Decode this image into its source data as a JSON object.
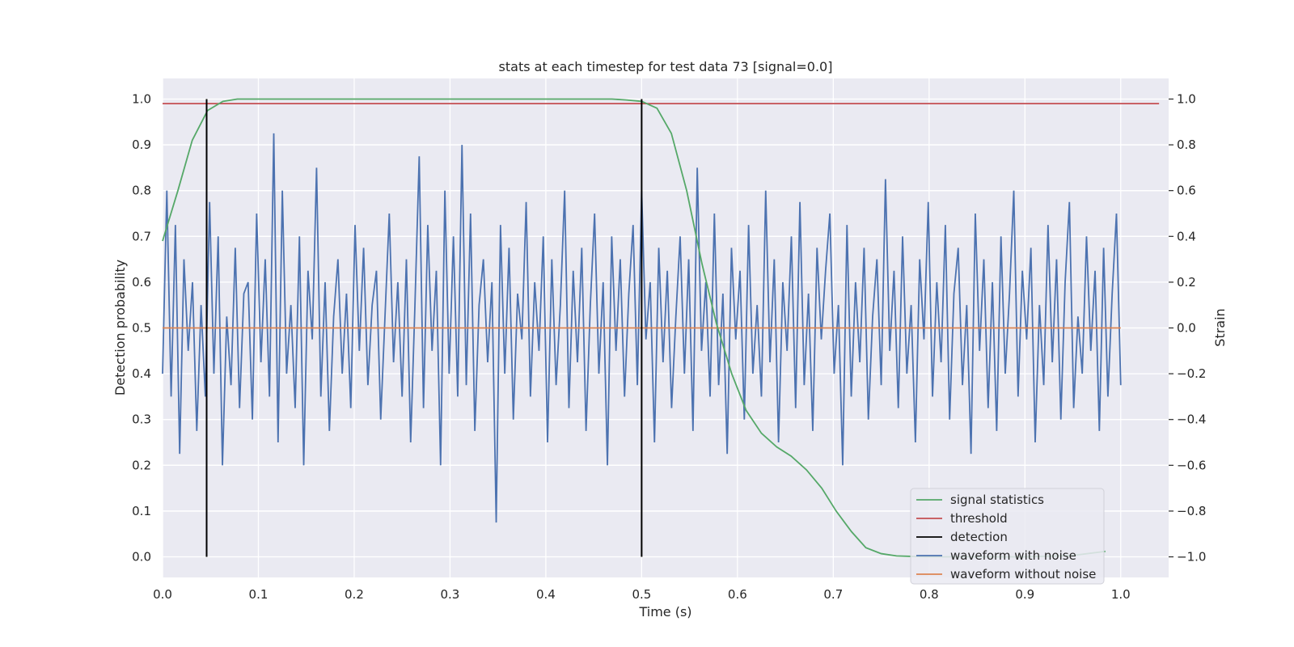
{
  "chart_data": {
    "type": "line",
    "title": "stats at each timestep for test data 73 [signal=0.0]",
    "xlabel": "Time (s)",
    "ylabel": "Detection probability",
    "y2label": "Strain",
    "xlim": [
      0.0,
      1.05
    ],
    "ylim": [
      -0.045,
      1.045
    ],
    "y2lim": [
      -1.09,
      1.09
    ],
    "xticks": [
      0.0,
      0.1,
      0.2,
      0.3,
      0.4,
      0.5,
      0.6,
      0.7,
      0.8,
      0.9,
      1.0
    ],
    "xtick_labels": [
      "0.0",
      "0.1",
      "0.2",
      "0.3",
      "0.4",
      "0.5",
      "0.6",
      "0.7",
      "0.8",
      "0.9",
      "1.0"
    ],
    "yticks": [
      0.0,
      0.1,
      0.2,
      0.3,
      0.4,
      0.5,
      0.6,
      0.7,
      0.8,
      0.9,
      1.0
    ],
    "ytick_labels": [
      "0.0",
      "0.1",
      "0.2",
      "0.3",
      "0.4",
      "0.5",
      "0.6",
      "0.7",
      "0.8",
      "0.9",
      "1.0"
    ],
    "y2ticks": [
      -1.0,
      -0.8,
      -0.6,
      -0.4,
      -0.2,
      0.0,
      0.2,
      0.4,
      0.6,
      0.8,
      1.0
    ],
    "y2tick_labels": [
      "−1.0",
      "−0.8",
      "−0.6",
      "−0.4",
      "−0.2",
      "0.0",
      "0.2",
      "0.4",
      "0.6",
      "0.8",
      "1.0"
    ],
    "grid": true,
    "legend_position": "lower-right",
    "colors": {
      "signal statistics": "#55a868",
      "threshold": "#c44e52",
      "detection": "#000000",
      "waveform with noise": "#4c72b0",
      "waveform without noise": "#dd8452",
      "background": "#eaeaf2",
      "grid": "#ffffff"
    },
    "series": [
      {
        "name": "signal statistics",
        "axis": "left",
        "x": [
          0.0,
          0.016,
          0.031,
          0.047,
          0.063,
          0.078,
          0.1,
          0.2,
          0.3,
          0.4,
          0.469,
          0.484,
          0.5,
          0.516,
          0.531,
          0.547,
          0.563,
          0.578,
          0.594,
          0.609,
          0.625,
          0.641,
          0.656,
          0.672,
          0.688,
          0.703,
          0.719,
          0.734,
          0.75,
          0.766,
          0.781,
          0.797,
          0.9,
          0.95,
          0.984
        ],
        "y": [
          0.69,
          0.8,
          0.91,
          0.975,
          0.995,
          1.0,
          1.0,
          1.0,
          1.0,
          1.0,
          1.0,
          0.998,
          0.995,
          0.98,
          0.925,
          0.8,
          0.64,
          0.51,
          0.4,
          0.32,
          0.27,
          0.24,
          0.22,
          0.19,
          0.15,
          0.1,
          0.055,
          0.02,
          0.007,
          0.002,
          0.001,
          0.0,
          0.0,
          0.003,
          0.012
        ]
      },
      {
        "name": "threshold",
        "axis": "left",
        "x": [
          0.0,
          1.04
        ],
        "y": [
          0.99,
          0.99
        ]
      },
      {
        "name": "detection",
        "axis": "left",
        "segments": [
          {
            "x": 0.046,
            "y0": 0.0,
            "y1": 1.0
          },
          {
            "x": 0.5,
            "y0": 0.0,
            "y1": 1.0
          }
        ]
      },
      {
        "name": "waveform with noise",
        "axis": "right",
        "x_start": 0.0,
        "x_end": 1.0,
        "y": [
          -0.2,
          0.6,
          -0.3,
          0.45,
          -0.55,
          0.3,
          -0.1,
          0.2,
          -0.45,
          0.1,
          -0.3,
          0.55,
          -0.2,
          0.4,
          -0.6,
          0.05,
          -0.25,
          0.35,
          -0.35,
          0.15,
          0.2,
          -0.4,
          0.5,
          -0.15,
          0.3,
          -0.3,
          0.85,
          -0.5,
          0.6,
          -0.2,
          0.1,
          -0.35,
          0.4,
          -0.6,
          0.25,
          -0.05,
          0.7,
          -0.3,
          0.2,
          -0.45,
          0.05,
          0.3,
          -0.2,
          0.15,
          -0.35,
          0.45,
          -0.1,
          0.35,
          -0.25,
          0.1,
          0.25,
          -0.4,
          0.05,
          0.5,
          -0.15,
          0.2,
          -0.3,
          0.3,
          -0.5,
          0.1,
          0.75,
          -0.35,
          0.45,
          -0.1,
          0.25,
          -0.6,
          0.6,
          -0.2,
          0.4,
          -0.3,
          0.8,
          -0.25,
          0.5,
          -0.45,
          0.1,
          0.3,
          -0.15,
          0.2,
          -0.85,
          0.45,
          -0.2,
          0.35,
          -0.4,
          0.15,
          -0.05,
          0.55,
          -0.3,
          0.2,
          -0.1,
          0.4,
          -0.5,
          0.3,
          -0.25,
          0.1,
          0.6,
          -0.35,
          0.25,
          -0.15,
          0.35,
          -0.45,
          0.1,
          0.5,
          -0.2,
          0.2,
          -0.6,
          0.4,
          -0.1,
          0.3,
          -0.3,
          0.15,
          0.45,
          -0.25,
          0.6,
          -0.05,
          0.2,
          -0.5,
          0.35,
          -0.15,
          0.25,
          -0.35,
          0.05,
          0.4,
          -0.2,
          0.3,
          -0.45,
          0.7,
          -0.1,
          0.2,
          -0.3,
          0.5,
          -0.25,
          0.15,
          -0.55,
          0.35,
          -0.05,
          0.25,
          -0.4,
          0.45,
          -0.2,
          0.1,
          -0.3,
          0.6,
          -0.15,
          0.3,
          -0.5,
          0.2,
          -0.1,
          0.4,
          -0.35,
          0.55,
          -0.25,
          0.15,
          -0.45,
          0.35,
          -0.05,
          0.25,
          0.5,
          -0.2,
          0.1,
          -0.6,
          0.45,
          -0.3,
          0.2,
          -0.15,
          0.35,
          -0.4,
          0.05,
          0.3,
          -0.25,
          0.65,
          -0.1,
          0.25,
          -0.35,
          0.4,
          -0.2,
          0.1,
          -0.5,
          0.3,
          -0.05,
          0.55,
          -0.3,
          0.2,
          -0.15,
          0.45,
          -0.4,
          0.15,
          0.35,
          -0.25,
          0.1,
          -0.55,
          0.5,
          -0.1,
          0.3,
          -0.35,
          0.2,
          -0.45,
          0.4,
          -0.2,
          0.15,
          0.6,
          -0.3,
          0.25,
          -0.05,
          0.35,
          -0.5,
          0.1,
          -0.25,
          0.45,
          -0.15,
          0.3,
          -0.4,
          0.2,
          0.55,
          -0.35,
          0.05,
          -0.2,
          0.4,
          -0.1,
          0.25,
          -0.45,
          0.35,
          -0.3,
          0.15,
          0.5,
          -0.25
        ]
      },
      {
        "name": "waveform without noise",
        "axis": "right",
        "x": [
          0.0,
          1.0
        ],
        "y": [
          0.0,
          0.0
        ]
      }
    ],
    "legend": [
      "signal statistics",
      "threshold",
      "detection",
      "waveform with noise",
      "waveform without noise"
    ]
  }
}
